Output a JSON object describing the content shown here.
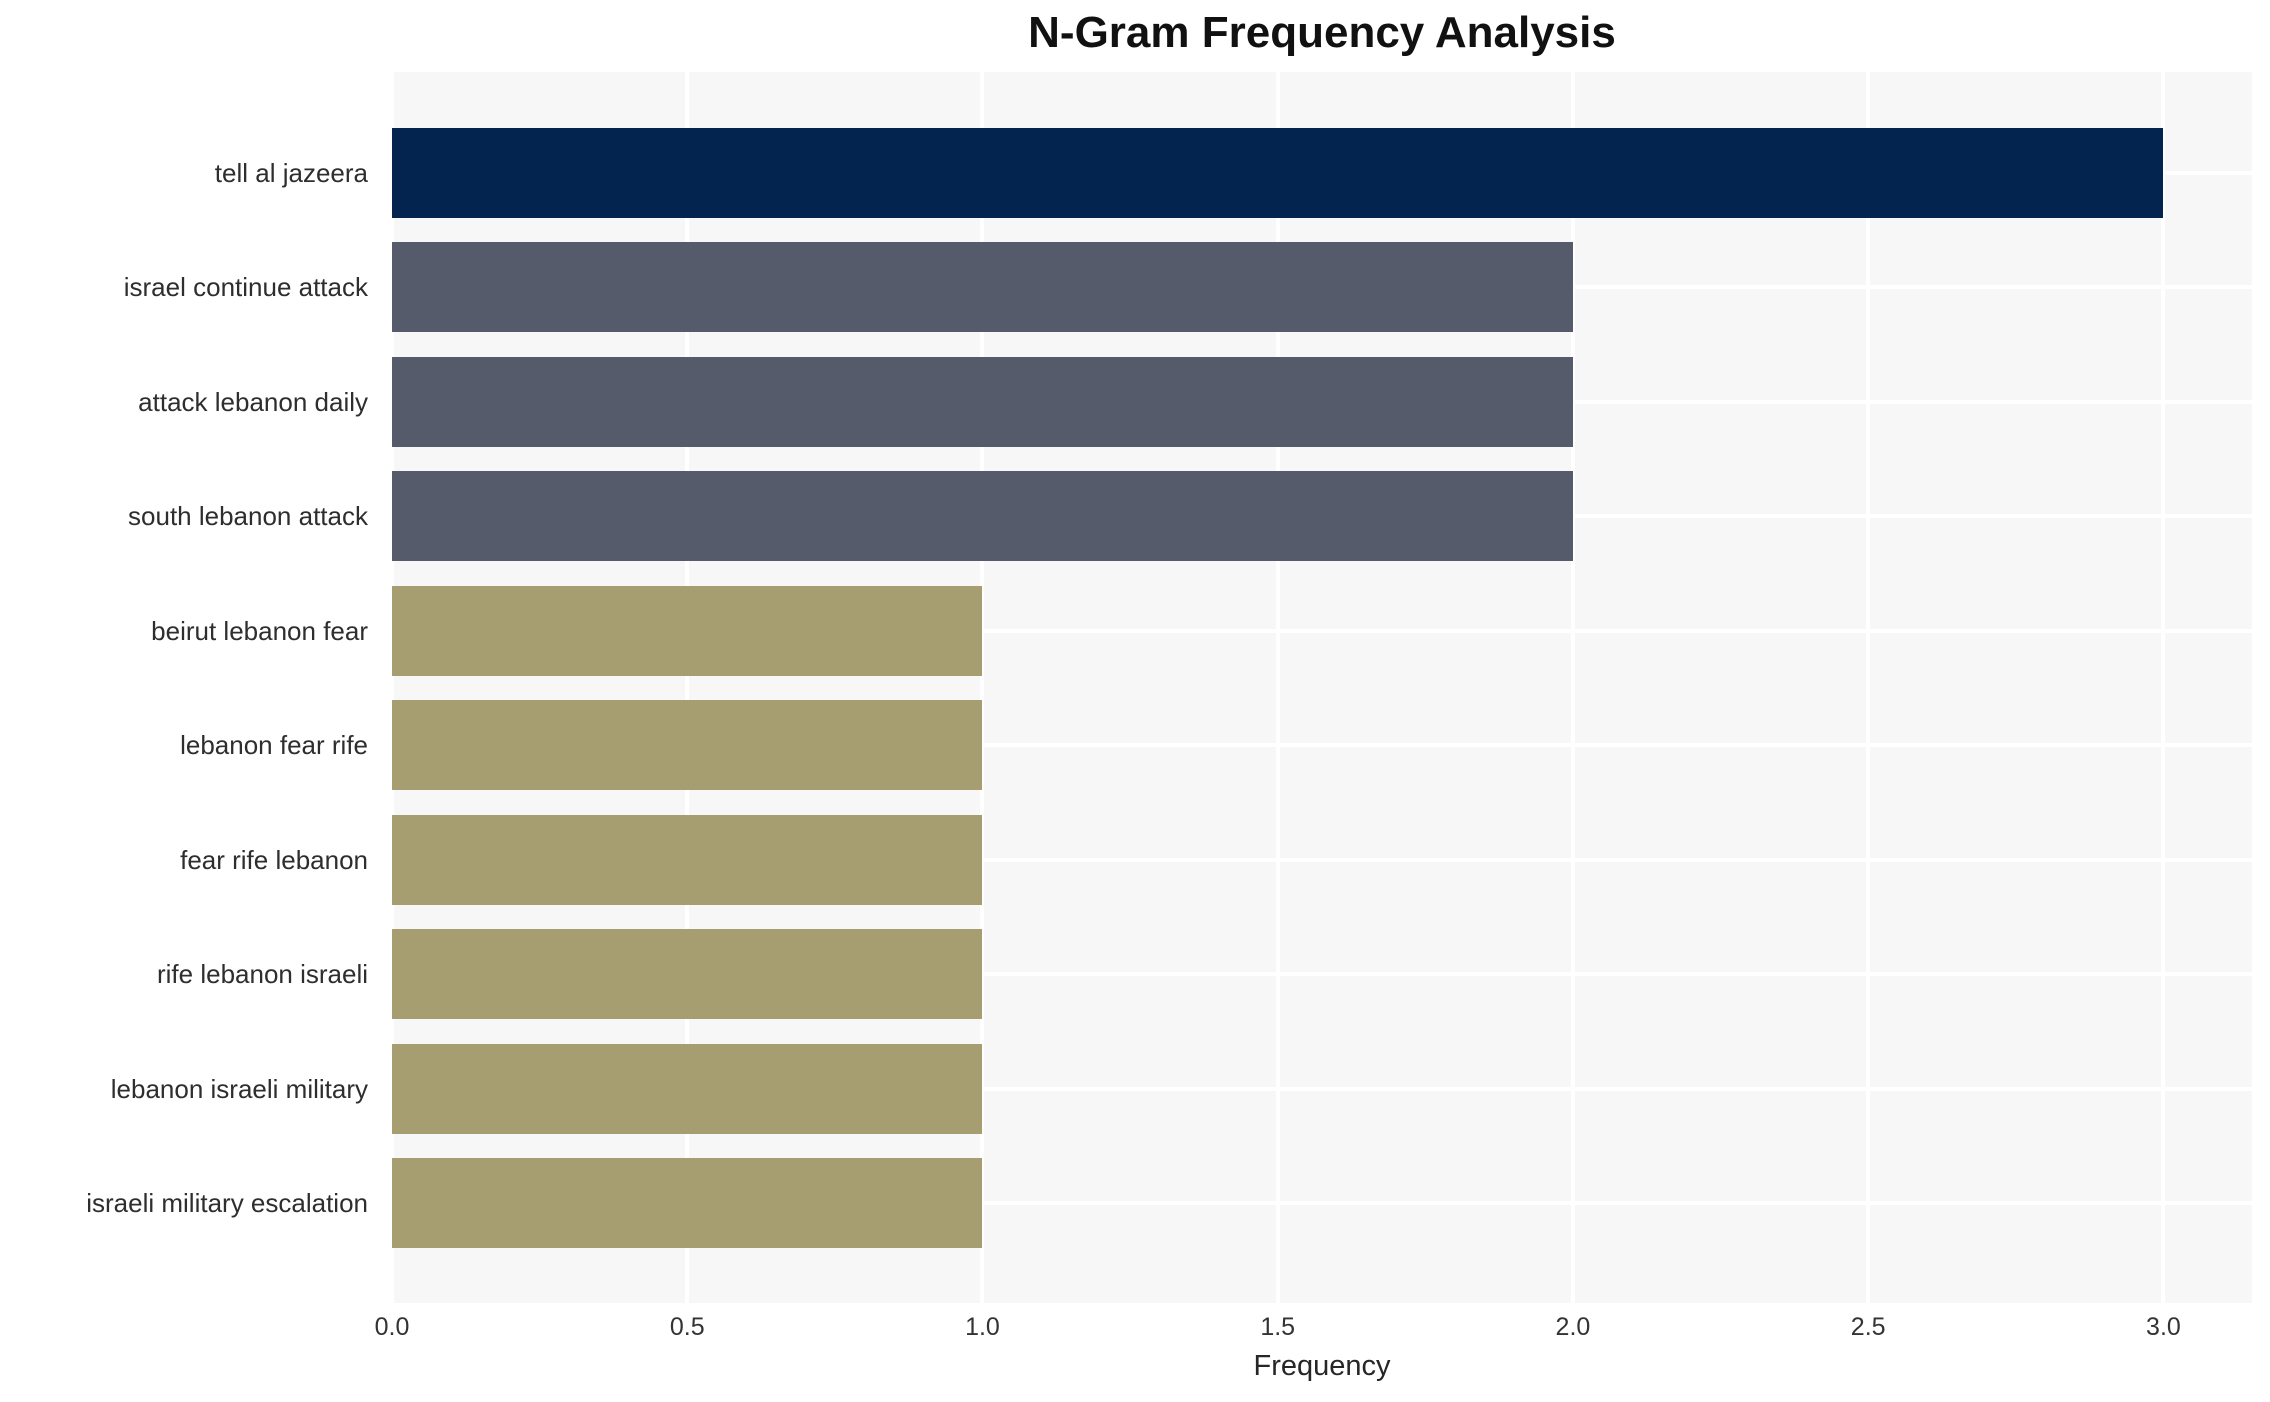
{
  "chart_data": {
    "type": "bar",
    "orientation": "horizontal",
    "title": "N-Gram Frequency Analysis",
    "xlabel": "Frequency",
    "ylabel": "",
    "categories": [
      "tell al jazeera",
      "israel continue attack",
      "attack lebanon daily",
      "south lebanon attack",
      "beirut lebanon fear",
      "lebanon fear rife",
      "fear rife lebanon",
      "rife lebanon israeli",
      "lebanon israeli military",
      "israeli military escalation"
    ],
    "values": [
      3,
      2,
      2,
      2,
      1,
      1,
      1,
      1,
      1,
      1
    ],
    "bar_colors": [
      "#03244e",
      "#565b6b",
      "#565b6b",
      "#565b6b",
      "#a69d71",
      "#a69d71",
      "#a69d71",
      "#a69d71",
      "#a69d71",
      "#a69d71"
    ],
    "xticks": [
      "0.0",
      "0.5",
      "1.0",
      "1.5",
      "2.0",
      "2.5",
      "3.0"
    ],
    "xtick_values": [
      0,
      0.5,
      1,
      1.5,
      2,
      2.5,
      3
    ],
    "xlim": [
      0,
      3.15
    ],
    "grid": "white",
    "legend": "none",
    "colors": {
      "plot_background": "#f7f7f7",
      "figure_background": "#ffffff",
      "gridline": "#ffffff",
      "title_text": "#111111",
      "tick_text": "#333333",
      "label_text": "#2e2e2e"
    }
  }
}
